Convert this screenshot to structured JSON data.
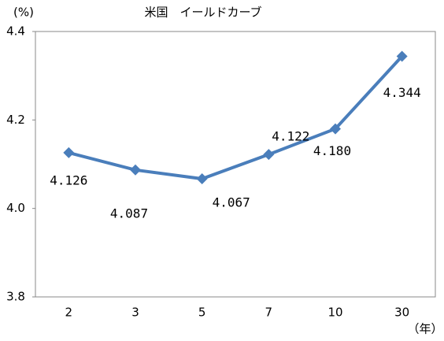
{
  "chart_data": {
    "type": "line",
    "title": "米国　イールドカーブ",
    "y_label": "(%)",
    "x_label": "（年）",
    "categories": [
      "2",
      "3",
      "5",
      "7",
      "10",
      "30"
    ],
    "series": [
      {
        "name": "米国",
        "color": "#4a7ebb",
        "values": [
          4.126,
          4.087,
          4.067,
          4.122,
          4.18,
          4.344
        ],
        "value_labels": [
          "4.126",
          "4.087",
          "4.067",
          "4.122",
          "4.180",
          "4.344"
        ]
      }
    ],
    "ylim": [
      3.8,
      4.4
    ],
    "yticks": [
      3.8,
      {
        "value": 4.0,
        "label": "4.0"
      },
      4.2,
      4.4
    ]
  }
}
